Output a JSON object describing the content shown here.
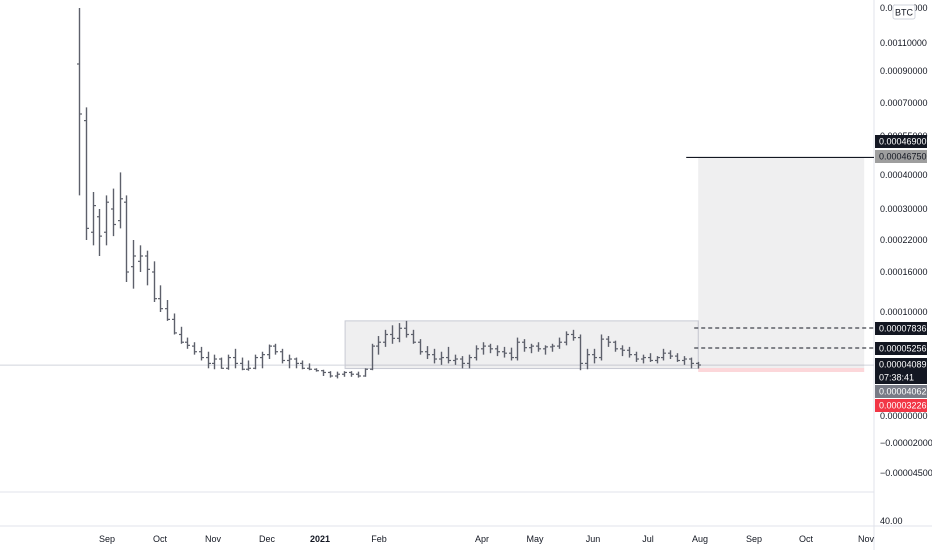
{
  "chart_data": {
    "type": "bar",
    "style": "ohlc",
    "currency_badge": "BTC",
    "y_axis": {
      "scale": "log",
      "tick_labels": [
        {
          "label": "0.00130000",
          "value": 0.0013
        },
        {
          "label": "0.00110000",
          "value": 0.0011
        },
        {
          "label": "0.00090000",
          "value": 0.0009
        },
        {
          "label": "0.00070000",
          "value": 0.0007
        },
        {
          "label": "0.00055000",
          "value": 0.00055
        },
        {
          "label": "0.00040000",
          "value": 0.0004
        },
        {
          "label": "0.00030000",
          "value": 0.0003
        },
        {
          "label": "0.00022000",
          "value": 0.00022
        },
        {
          "label": "0.00016000",
          "value": 0.00016
        },
        {
          "label": "0.00010000",
          "value": 0.0001
        },
        {
          "label": "0.00000000",
          "value": 0.0
        },
        {
          "label": "−0.00002000",
          "value": -2e-05
        },
        {
          "label": "−0.00004500",
          "value": -4.5e-05
        }
      ],
      "indicator_tick": "40.00"
    },
    "x_axis": {
      "tick_labels": [
        "Sep",
        "Oct",
        "Nov",
        "Dec",
        "2021",
        "Feb",
        "Apr",
        "May",
        "Jun",
        "Jul",
        "Aug",
        "Sep",
        "Oct",
        "Nov"
      ],
      "bold_label": "2021"
    },
    "price_labels": [
      {
        "text": "0.00046900",
        "value": 0.000469,
        "bg": "#131722",
        "color": "#ffffff"
      },
      {
        "text": "0.00046750",
        "value": 0.0004675,
        "bg": "#9e9e9e",
        "color": "#131722"
      },
      {
        "text": "0.00007836",
        "value": 7.836e-05,
        "bg": "#131722",
        "color": "#ffffff"
      },
      {
        "text": "0.00005256",
        "value": 5.256e-05,
        "bg": "#131722",
        "color": "#ffffff"
      },
      {
        "text": "0.00004089",
        "value": 4.089e-05,
        "bg": "#131722",
        "color": "#ffffff"
      },
      {
        "text": "07:38:41",
        "value": 4.089e-05,
        "bg": "#131722",
        "color": "#ffffff"
      },
      {
        "text": "0.00004062",
        "value": 4.062e-05,
        "bg": "#787b86",
        "color": "#ffffff"
      },
      {
        "text": "0.00003226",
        "value": 3.226e-05,
        "bg": "#f23645",
        "color": "#ffffff"
      }
    ],
    "current_price": 4.089e-05,
    "range_box": {
      "from": "2021-01-15",
      "to": "2021-07-31",
      "high": 8.8e-05,
      "low": 3.95e-05
    },
    "long_position": {
      "from": "2021-07-31",
      "to": "2021-10-31",
      "entry": 4.062e-05,
      "target": 0.0004675,
      "stop": 3.226e-05
    },
    "target_line": {
      "from": "2021-07-31",
      "to": "2021-11-20",
      "value": 0.0004675
    },
    "dashed_lines": [
      {
        "from": "2021-07-31",
        "value": 7.836e-05
      },
      {
        "from": "2021-07-31",
        "value": 5.256e-05
      }
    ],
    "series": [
      {
        "values": [
          [
            0.00095,
            0.0015,
            0.00034,
            0.00065
          ],
          [
            0.00062,
            0.00068,
            0.00022,
            0.00025
          ],
          [
            0.00024,
            0.00035,
            0.00021,
            0.00031
          ],
          [
            0.00028,
            0.0003,
            0.00019,
            0.00023
          ],
          [
            0.00024,
            0.00034,
            0.00021,
            0.00032
          ],
          [
            0.0003,
            0.00036,
            0.00023,
            0.00026
          ],
          [
            0.00027,
            0.00041,
            0.00025,
            0.00033
          ],
          [
            0.00032,
            0.00034,
            0.000145,
            0.00016
          ],
          [
            0.00017,
            0.00022,
            0.000135,
            0.00019
          ],
          [
            0.00018,
            0.00021,
            0.00016,
            0.00019
          ],
          [
            0.00019,
            0.0002,
            0.00014,
            0.000165
          ],
          [
            0.00016,
            0.00018,
            0.000115,
            0.00012
          ],
          [
            0.00012,
            0.00014,
            0.0001,
            0.000105
          ],
          [
            0.000105,
            0.000118,
            8.8e-05,
            9e-05
          ],
          [
            9e-05,
            9.8e-05,
            7e-05,
            7.2e-05
          ],
          [
            7e-05,
            8e-05,
            5.8e-05,
            6e-05
          ],
          [
            6e-05,
            6.6e-05,
            5.2e-05,
            5.6e-05
          ],
          [
            5.5e-05,
            6e-05,
            4.8e-05,
            5e-05
          ],
          [
            5e-05,
            5.4e-05,
            4.4e-05,
            4.6e-05
          ],
          [
            4.6e-05,
            5e-05,
            4e-05,
            4.2e-05
          ],
          [
            4.2e-05,
            4.8e-05,
            3.8e-05,
            4.5e-05
          ],
          [
            4.5e-05,
            4.6e-05,
            3.9e-05,
            4e-05
          ],
          [
            4e-05,
            4.8e-05,
            3.7e-05,
            4.6e-05
          ],
          [
            4.6e-05,
            5.2e-05,
            4e-05,
            4.2e-05
          ],
          [
            4.2e-05,
            4.6e-05,
            3.6e-05,
            3.8e-05
          ],
          [
            3.8e-05,
            4.4e-05,
            3.5e-05,
            4e-05
          ],
          [
            4e-05,
            4.8e-05,
            3.8e-05,
            4.6e-05
          ],
          [
            4.6e-05,
            5e-05,
            4e-05,
            4.8e-05
          ],
          [
            4.8e-05,
            5.7e-05,
            4.5e-05,
            5.5e-05
          ],
          [
            5.5e-05,
            5.8e-05,
            4.8e-05,
            5e-05
          ],
          [
            5e-05,
            5.2e-05,
            4.2e-05,
            4.4e-05
          ],
          [
            4.4e-05,
            4.8e-05,
            4e-05,
            4.5e-05
          ],
          [
            4.5e-05,
            4.6e-05,
            4e-05,
            4.2e-05
          ],
          [
            4.2e-05,
            4.4e-05,
            3.8e-05,
            4e-05
          ],
          [
            4e-05,
            4.2e-05,
            3.6e-05,
            3.8e-05
          ],
          [
            3.8e-05,
            4e-05,
            3.3e-05,
            3.5e-05
          ],
          [
            3.5e-05,
            3.7e-05,
            3e-05,
            3.2e-05
          ],
          [
            3.2e-05,
            3.4e-05,
            2.8e-05,
            3e-05
          ],
          [
            3e-05,
            3.3e-05,
            2.7e-05,
            3.1e-05
          ],
          [
            3.1e-05,
            3.4e-05,
            2.9e-05,
            3.2e-05
          ],
          [
            3.2e-05,
            3.4e-05,
            2.9e-05,
            3.1e-05
          ],
          [
            3.1e-05,
            3.3e-05,
            2.8e-05,
            3e-05
          ],
          [
            3e-05,
            4e-05,
            2.9e-05,
            3.8e-05
          ],
          [
            3.8e-05,
            5.8e-05,
            3.6e-05,
            5.5e-05
          ],
          [
            5.5e-05,
            6.8e-05,
            4.8e-05,
            6e-05
          ],
          [
            6e-05,
            7.6e-05,
            5.4e-05,
            7e-05
          ],
          [
            7e-05,
            8.2e-05,
            5.8e-05,
            6.5e-05
          ],
          [
            6.5e-05,
            8.5e-05,
            6e-05,
            7.8e-05
          ],
          [
            7.8e-05,
            8.8e-05,
            6.6e-05,
            7e-05
          ],
          [
            7e-05,
            7.6e-05,
            5.8e-05,
            6e-05
          ],
          [
            6e-05,
            6.4e-05,
            4.8e-05,
            5e-05
          ],
          [
            5e-05,
            5.5e-05,
            4.5e-05,
            4.8e-05
          ],
          [
            4.8e-05,
            5.2e-05,
            4.2e-05,
            4.5e-05
          ],
          [
            4.5e-05,
            5e-05,
            4.1e-05,
            4.6e-05
          ],
          [
            4.6e-05,
            5.4e-05,
            4.2e-05,
            4.4e-05
          ],
          [
            4.4e-05,
            4.8e-05,
            4.1e-05,
            4.5e-05
          ],
          [
            4.5e-05,
            4.7e-05,
            4e-05,
            4.2e-05
          ],
          [
            4.2e-05,
            4.8e-05,
            4e-05,
            4.6e-05
          ],
          [
            4.6e-05,
            5.6e-05,
            4.4e-05,
            5.2e-05
          ],
          [
            5.2e-05,
            6e-05,
            4.8e-05,
            5.5e-05
          ],
          [
            5.5e-05,
            5.8e-05,
            4.9e-05,
            5.2e-05
          ],
          [
            5.2e-05,
            5.6e-05,
            4.7e-05,
            5e-05
          ],
          [
            5e-05,
            5.4e-05,
            4.6e-05,
            4.9e-05
          ],
          [
            4.9e-05,
            5.3e-05,
            4.4e-05,
            4.6e-05
          ],
          [
            4.6e-05,
            6.6e-05,
            4.4e-05,
            6e-05
          ],
          [
            6e-05,
            6.4e-05,
            5e-05,
            5.3e-05
          ],
          [
            5.3e-05,
            5.8e-05,
            4.9e-05,
            5.5e-05
          ],
          [
            5.5e-05,
            6e-05,
            5e-05,
            5.2e-05
          ],
          [
            5.2e-05,
            5.6e-05,
            4.8e-05,
            5.4e-05
          ],
          [
            5.4e-05,
            5.8e-05,
            5e-05,
            5.5e-05
          ],
          [
            5.5e-05,
            6.6e-05,
            5.2e-05,
            6e-05
          ],
          [
            6e-05,
            7.4e-05,
            5.6e-05,
            7e-05
          ],
          [
            7e-05,
            7.6e-05,
            6.2e-05,
            6.6e-05
          ],
          [
            6.6e-05,
            7e-05,
            3.6e-05,
            4.2e-05
          ],
          [
            4.2e-05,
            5.2e-05,
            3.8e-05,
            4.8e-05
          ],
          [
            4.8e-05,
            5.2e-05,
            4.2e-05,
            4.6e-05
          ],
          [
            4.6e-05,
            7e-05,
            4.4e-05,
            6.4e-05
          ],
          [
            6.4e-05,
            6.8e-05,
            5.4e-05,
            6e-05
          ],
          [
            6e-05,
            6.2e-05,
            5e-05,
            5.2e-05
          ],
          [
            5.2e-05,
            5.6e-05,
            4.7e-05,
            5.1e-05
          ],
          [
            5.1e-05,
            5.4e-05,
            4.6e-05,
            4.8e-05
          ],
          [
            4.8e-05,
            5e-05,
            4.3e-05,
            4.5e-05
          ],
          [
            4.5e-05,
            4.8e-05,
            4.2e-05,
            4.6e-05
          ],
          [
            4.6e-05,
            4.9e-05,
            4.3e-05,
            4.4e-05
          ],
          [
            4.4e-05,
            4.7e-05,
            4.2e-05,
            4.6e-05
          ],
          [
            4.6e-05,
            5.2e-05,
            4.4e-05,
            4.9e-05
          ],
          [
            4.9e-05,
            5.1e-05,
            4.5e-05,
            4.7e-05
          ],
          [
            4.7e-05,
            4.9e-05,
            4.3e-05,
            4.4e-05
          ],
          [
            4.4e-05,
            4.7e-05,
            4.1e-05,
            4.5e-05
          ],
          [
            4.5e-05,
            4.6e-05,
            4e-05,
            4.2e-05
          ],
          [
            4.2e-05,
            4.3e-05,
            3.95e-05,
            4.09e-05
          ]
        ]
      }
    ],
    "series_start": "2020-08-16",
    "series_end": "2021-07-31"
  }
}
